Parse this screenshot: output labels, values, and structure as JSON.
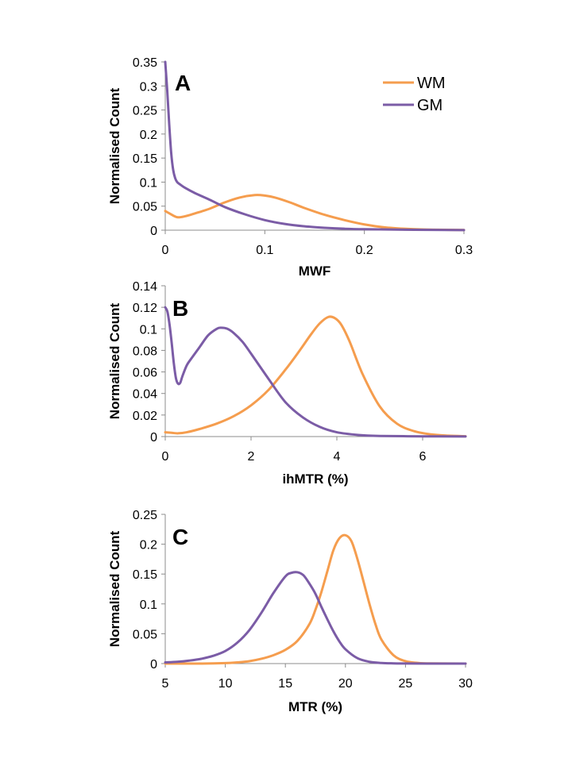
{
  "chart_data": [
    {
      "type": "line",
      "panel_label": "A",
      "title": "",
      "xlabel": "MWF",
      "ylabel": "Normalised Count",
      "xlim": [
        0,
        0.3
      ],
      "ylim": [
        0,
        0.35
      ],
      "x_ticks": [
        0,
        0.1,
        0.2,
        0.3
      ],
      "x_tick_labels": [
        "0",
        "0.1",
        "0.2",
        "0.3"
      ],
      "y_ticks": [
        0,
        0.05,
        0.1,
        0.15,
        0.2,
        0.25,
        0.3,
        0.35
      ],
      "y_tick_labels": [
        "0",
        "0.05",
        "0.1",
        "0.15",
        "0.2",
        "0.25",
        "0.3",
        "0.35"
      ],
      "legend": {
        "placement": "top-right",
        "entries": [
          "WM",
          "GM"
        ]
      },
      "series": [
        {
          "name": "WM",
          "color": "#f59d4e",
          "x": [
            0,
            0.005,
            0.012,
            0.02,
            0.03,
            0.045,
            0.06,
            0.075,
            0.09,
            0.1,
            0.11,
            0.125,
            0.14,
            0.16,
            0.18,
            0.2,
            0.22,
            0.24,
            0.26,
            0.28,
            0.3
          ],
          "y": [
            0.04,
            0.034,
            0.027,
            0.029,
            0.035,
            0.045,
            0.058,
            0.068,
            0.073,
            0.072,
            0.068,
            0.058,
            0.046,
            0.032,
            0.021,
            0.012,
            0.006,
            0.003,
            0.0015,
            0.0008,
            0.0004
          ]
        },
        {
          "name": "GM",
          "color": "#7b5ca6",
          "x": [
            0,
            0.002,
            0.004,
            0.006,
            0.008,
            0.01,
            0.012,
            0.015,
            0.02,
            0.03,
            0.045,
            0.06,
            0.08,
            0.1,
            0.12,
            0.14,
            0.16,
            0.18,
            0.2,
            0.25,
            0.3
          ],
          "y": [
            0.35,
            0.29,
            0.22,
            0.16,
            0.125,
            0.108,
            0.1,
            0.095,
            0.088,
            0.077,
            0.063,
            0.048,
            0.033,
            0.021,
            0.013,
            0.008,
            0.005,
            0.003,
            0.002,
            0.0008,
            0.0003
          ]
        }
      ]
    },
    {
      "type": "line",
      "panel_label": "B",
      "title": "",
      "xlabel": "ihMTR (%)",
      "ylabel": "Normalised Count",
      "xlim": [
        0,
        7
      ],
      "ylim": [
        0,
        0.14
      ],
      "x_ticks": [
        0,
        2,
        4,
        6
      ],
      "x_tick_labels": [
        "0",
        "2",
        "4",
        "6"
      ],
      "y_ticks": [
        0,
        0.02,
        0.04,
        0.06,
        0.08,
        0.1,
        0.12,
        0.14
      ],
      "y_tick_labels": [
        "0",
        "0.02",
        "0.04",
        "0.06",
        "0.08",
        "0.1",
        "0.12",
        "0.14"
      ],
      "series": [
        {
          "name": "WM",
          "color": "#f59d4e",
          "x": [
            0,
            0.15,
            0.3,
            0.5,
            0.8,
            1.2,
            1.6,
            2.0,
            2.4,
            2.8,
            3.1,
            3.4,
            3.6,
            3.8,
            3.95,
            4.1,
            4.3,
            4.6,
            5.0,
            5.4,
            5.8,
            6.2,
            6.6,
            7.0
          ],
          "y": [
            0.004,
            0.0035,
            0.003,
            0.004,
            0.007,
            0.012,
            0.019,
            0.029,
            0.043,
            0.062,
            0.078,
            0.095,
            0.105,
            0.111,
            0.11,
            0.104,
            0.088,
            0.058,
            0.028,
            0.012,
            0.005,
            0.002,
            0.0008,
            0.0003
          ]
        },
        {
          "name": "GM",
          "color": "#7b5ca6",
          "x": [
            0,
            0.05,
            0.1,
            0.15,
            0.2,
            0.25,
            0.3,
            0.35,
            0.4,
            0.5,
            0.6,
            0.8,
            1.0,
            1.2,
            1.3,
            1.45,
            1.6,
            1.8,
            2.0,
            2.4,
            2.8,
            3.2,
            3.6,
            4.0,
            4.5,
            5.0,
            6.0,
            7.0
          ],
          "y": [
            0.12,
            0.116,
            0.104,
            0.087,
            0.068,
            0.054,
            0.049,
            0.05,
            0.056,
            0.066,
            0.072,
            0.083,
            0.094,
            0.1,
            0.101,
            0.1,
            0.096,
            0.088,
            0.077,
            0.054,
            0.032,
            0.018,
            0.009,
            0.004,
            0.0015,
            0.0006,
            0.0002,
            0.0001
          ]
        }
      ]
    },
    {
      "type": "line",
      "panel_label": "C",
      "title": "",
      "xlabel": "MTR (%)",
      "ylabel": "Normalised Count",
      "xlim": [
        5,
        30
      ],
      "ylim": [
        0,
        0.25
      ],
      "x_ticks": [
        5,
        10,
        15,
        20,
        25,
        30
      ],
      "x_tick_labels": [
        "5",
        "10",
        "15",
        "20",
        "25",
        "30"
      ],
      "y_ticks": [
        0,
        0.05,
        0.1,
        0.15,
        0.2,
        0.25
      ],
      "y_tick_labels": [
        "0",
        "0.05",
        "0.1",
        "0.15",
        "0.2",
        "0.25"
      ],
      "series": [
        {
          "name": "WM",
          "color": "#f59d4e",
          "x": [
            5,
            8,
            10,
            11,
            12,
            13,
            14,
            15,
            16,
            17,
            17.5,
            18,
            18.5,
            19,
            19.5,
            20,
            20.5,
            21,
            21.5,
            22,
            22.5,
            23,
            24,
            25,
            26,
            27,
            30
          ],
          "y": [
            0,
            0,
            0.0008,
            0.002,
            0.004,
            0.008,
            0.014,
            0.023,
            0.038,
            0.066,
            0.09,
            0.12,
            0.155,
            0.19,
            0.21,
            0.215,
            0.205,
            0.175,
            0.138,
            0.1,
            0.066,
            0.04,
            0.014,
            0.004,
            0.0012,
            0.0003,
            0
          ]
        },
        {
          "name": "GM",
          "color": "#7b5ca6",
          "x": [
            5,
            6,
            7,
            8,
            9,
            10,
            11,
            12,
            13,
            14,
            15,
            15.5,
            16,
            16.5,
            17,
            17.5,
            18,
            18.5,
            19,
            19.5,
            20,
            21,
            22,
            23,
            24,
            25,
            27,
            30
          ],
          "y": [
            0.002,
            0.003,
            0.005,
            0.008,
            0.013,
            0.021,
            0.035,
            0.056,
            0.085,
            0.118,
            0.146,
            0.152,
            0.153,
            0.148,
            0.134,
            0.117,
            0.095,
            0.074,
            0.054,
            0.037,
            0.024,
            0.009,
            0.003,
            0.001,
            0.0004,
            0.0002,
            0,
            0
          ]
        }
      ]
    }
  ]
}
